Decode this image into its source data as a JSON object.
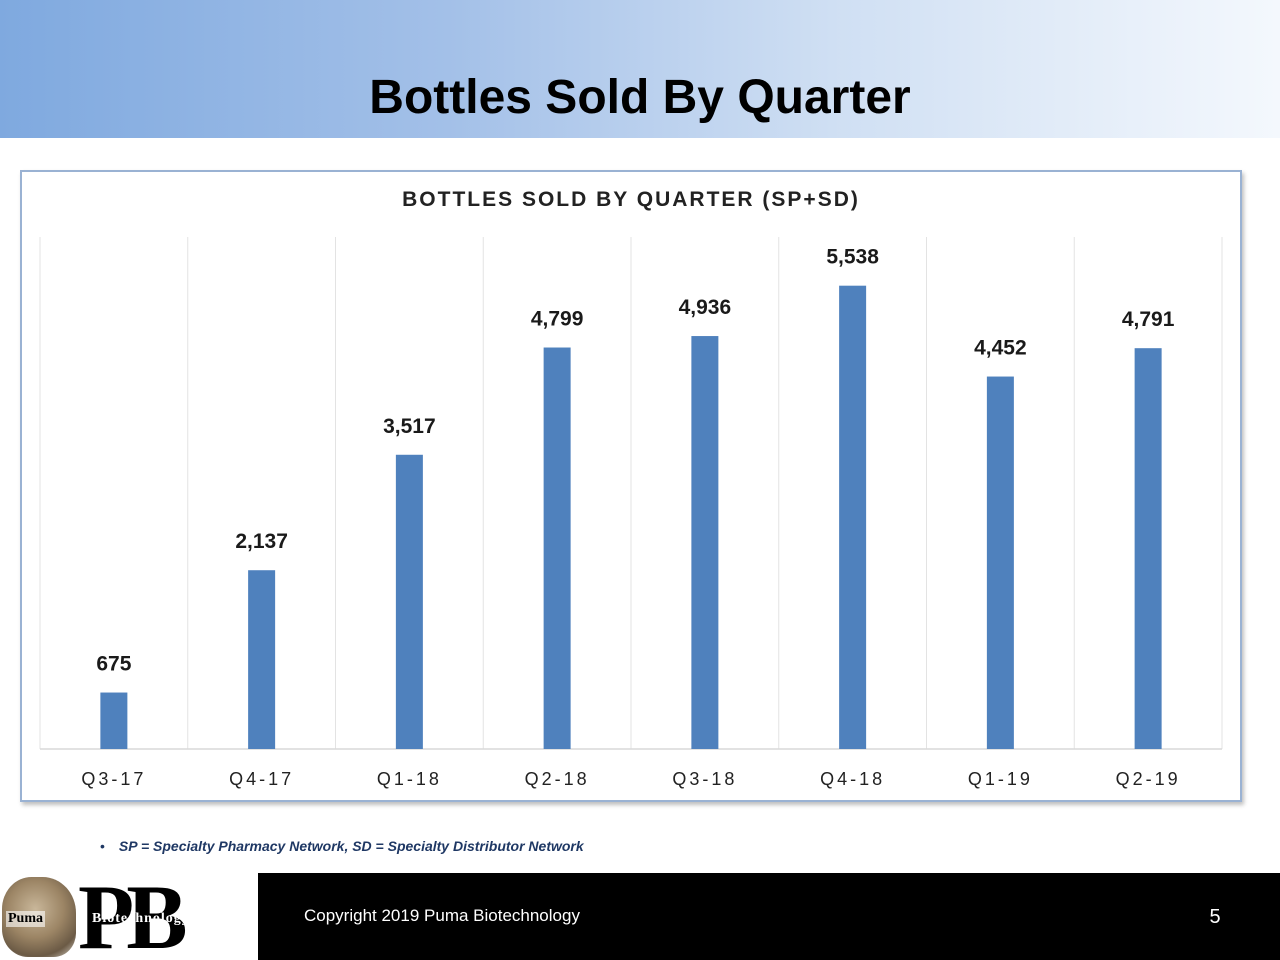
{
  "slide": {
    "title": "Bottles Sold By Quarter",
    "footnote": "SP = Specialty Pharmacy Network, SD = Specialty Distributor Network",
    "footnote_bullet": "•",
    "copyright": "Copyright 2019 Puma Biotechnology",
    "page_number": "5",
    "logo": {
      "word1": "Puma",
      "word2": "Biotechnology",
      "letters": "PB"
    }
  },
  "colors": {
    "bar": "#4f81bd",
    "header_gradient_start": "#7fa9df",
    "footer": "#000000"
  },
  "chart_data": {
    "type": "bar",
    "title": "BOTTLES SOLD BY QUARTER (SP+SD)",
    "categories": [
      "Q3-17",
      "Q4-17",
      "Q1-18",
      "Q2-18",
      "Q3-18",
      "Q4-18",
      "Q1-19",
      "Q2-19"
    ],
    "values": [
      675,
      2137,
      3517,
      4799,
      4936,
      5538,
      4452,
      4791
    ],
    "value_labels": [
      "675",
      "2,137",
      "3,517",
      "4,799",
      "4,936",
      "5,538",
      "4,452",
      "4,791"
    ],
    "ylim": [
      0,
      6120
    ],
    "grid": "vertical",
    "legend": "none"
  }
}
